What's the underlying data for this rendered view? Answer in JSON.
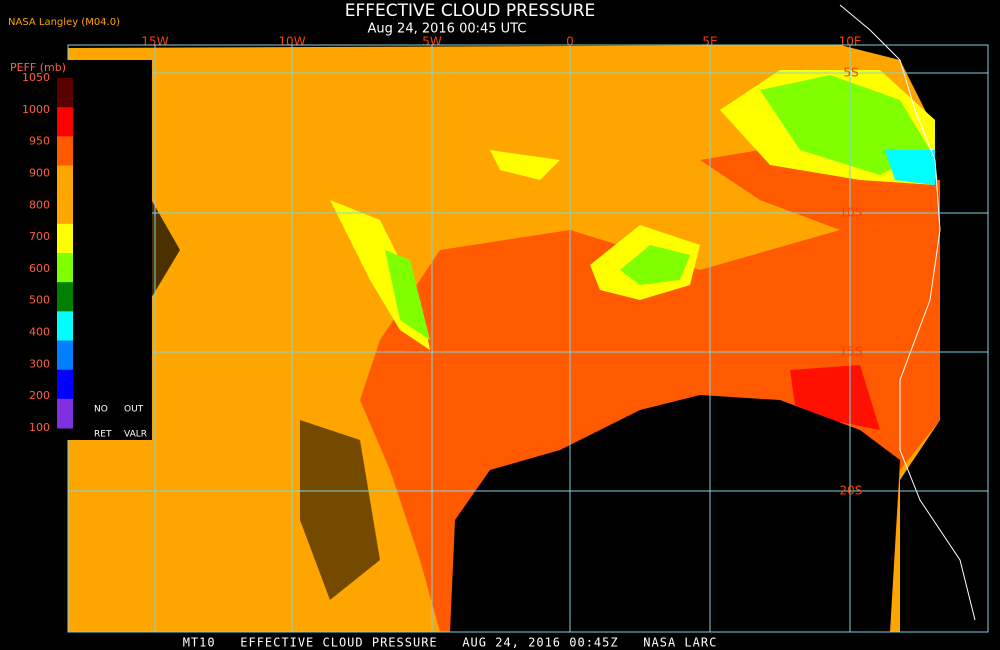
{
  "header": {
    "title": "EFFECTIVE CLOUD PRESSURE",
    "subtitle": "Aug 24, 2016 00:45 UTC",
    "credit": "NASA Langley (M04.0)"
  },
  "legend": {
    "title": "PEFF (mb)",
    "labels": [
      "1050",
      "1000",
      "950",
      "900",
      "800",
      "700",
      "600",
      "500",
      "400",
      "300",
      "200",
      "100"
    ],
    "colors": [
      "#5a0000",
      "#ff0000",
      "#ff5a00",
      "#ffa500",
      "#ffa500",
      "#ffff00",
      "#80ff00",
      "#008000",
      "#00ffff",
      "#0080ff",
      "#0000ff",
      "#8030e0"
    ],
    "notes": [
      "NO",
      "OUT",
      "RET",
      "VALR"
    ]
  },
  "map": {
    "longitudes": [
      "15W",
      "10W",
      "5W",
      "0",
      "5E",
      "10E"
    ],
    "latitudes": [
      "5S",
      "10S",
      "15S",
      "20S"
    ]
  },
  "footer": "MT10   EFFECTIVE CLOUD PRESSURE   AUG 24, 2016 00:45Z   NASA LARC"
}
